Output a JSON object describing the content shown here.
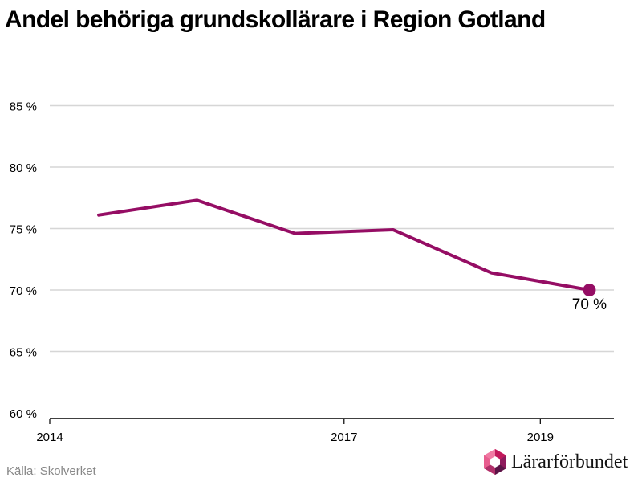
{
  "title": "Andel behöriga grundskollärare i Region Gotland",
  "source": "Källa: Skolverket",
  "brand": {
    "name": "Lärarförbundet",
    "icon": "lararforbundet-hexagon-logo"
  },
  "colors": {
    "line": "#950d64",
    "grid": "#d6d6d6",
    "axis": "#000000",
    "source": "#888888"
  },
  "chart_data": {
    "type": "line",
    "title": "Andel behöriga grundskollärare i Region Gotland",
    "xlabel": "",
    "ylabel": "",
    "x": [
      2014.5,
      2015.5,
      2016.5,
      2017.5,
      2018.5,
      2019.5
    ],
    "values": [
      76.1,
      77.3,
      74.6,
      74.9,
      71.4,
      70.0
    ],
    "xlim": [
      2014,
      2019.75
    ],
    "ylim": [
      60,
      85
    ],
    "x_ticks": [
      2014,
      2017,
      2019
    ],
    "x_tick_labels": [
      "2014",
      "2017",
      "2019"
    ],
    "y_ticks": [
      60,
      65,
      70,
      75,
      80,
      85
    ],
    "y_tick_labels": [
      "60 %",
      "65 %",
      "70 %",
      "75 %",
      "80 %",
      "85 %"
    ],
    "annotation": {
      "point_index": 5,
      "text": "70 %"
    },
    "grid": true
  }
}
